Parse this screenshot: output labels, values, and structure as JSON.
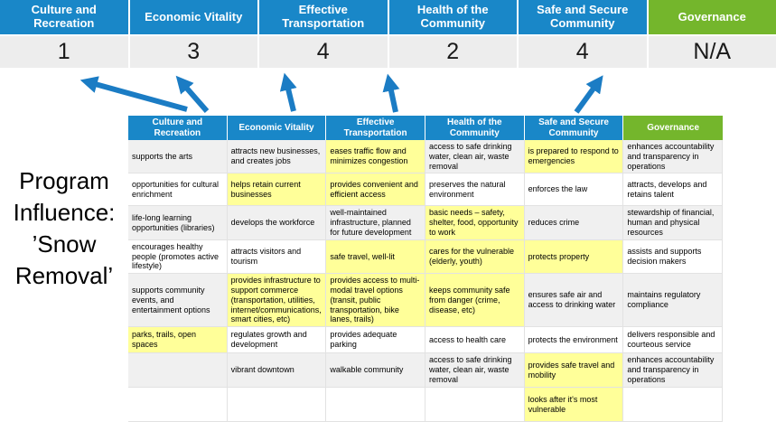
{
  "colors": {
    "header_blue": "#1987C8",
    "governance_green": "#74B62C",
    "highlight_yellow": "#FFFF99",
    "score_row_bg": "#EDEDED",
    "banded_row_gray": "#F0F0F0",
    "arrow_blue": "#1B7CC4"
  },
  "side_label": {
    "text": "Program Influence: ’Snow Removal’"
  },
  "top_band": {
    "categories": [
      {
        "label": "Culture and Recreation",
        "score": "1",
        "color": "#1987C8"
      },
      {
        "label": "Economic Vitality",
        "score": "3",
        "color": "#1987C8"
      },
      {
        "label": "Effective Transportation",
        "score": "4",
        "color": "#1987C8"
      },
      {
        "label": "Health of the Community",
        "score": "2",
        "color": "#1987C8"
      },
      {
        "label": "Safe and Secure Community",
        "score": "4",
        "color": "#1987C8"
      },
      {
        "label": "Governance",
        "score": "N/A",
        "color": "#74B62C"
      }
    ]
  },
  "matrix": {
    "columns": [
      {
        "label": "Culture and Recreation",
        "color": "#1987C8"
      },
      {
        "label": "Economic Vitality",
        "color": "#1987C8"
      },
      {
        "label": "Effective Transportation",
        "color": "#1987C8"
      },
      {
        "label": "Health of the Community",
        "color": "#1987C8"
      },
      {
        "label": "Safe and Secure Community",
        "color": "#1987C8"
      },
      {
        "label": "Governance",
        "color": "#74B62C"
      }
    ],
    "rows": [
      [
        {
          "text": "supports the arts",
          "highlight": false
        },
        {
          "text": "attracts new businesses, and creates jobs",
          "highlight": false
        },
        {
          "text": "eases traffic flow and minimizes congestion",
          "highlight": true
        },
        {
          "text": "access to safe drinking water, clean air, waste removal",
          "highlight": false
        },
        {
          "text": "is prepared to respond to emergencies",
          "highlight": true
        },
        {
          "text": "enhances accountability and transparency in operations",
          "highlight": false
        }
      ],
      [
        {
          "text": "opportunities for cultural enrichment",
          "highlight": false
        },
        {
          "text": "helps retain current businesses",
          "highlight": true
        },
        {
          "text": "provides convenient and efficient access",
          "highlight": true
        },
        {
          "text": "preserves the natural environment",
          "highlight": false
        },
        {
          "text": "enforces the law",
          "highlight": false
        },
        {
          "text": "attracts, develops and retains talent",
          "highlight": false
        }
      ],
      [
        {
          "text": "life-long learning opportunities (libraries)",
          "highlight": false
        },
        {
          "text": "develops the workforce",
          "highlight": false
        },
        {
          "text": "well-maintained infrastructure, planned for future development",
          "highlight": false
        },
        {
          "text": "basic needs – safety, shelter, food, opportunity to work",
          "highlight": true
        },
        {
          "text": "reduces crime",
          "highlight": false
        },
        {
          "text": "stewardship of financial, human and physical resources",
          "highlight": false
        }
      ],
      [
        {
          "text": "encourages healthy people (promotes active lifestyle)",
          "highlight": false
        },
        {
          "text": "attracts visitors and tourism",
          "highlight": false
        },
        {
          "text": "safe travel, well-lit",
          "highlight": true
        },
        {
          "text": "cares for the vulnerable (elderly, youth)",
          "highlight": true
        },
        {
          "text": "protects property",
          "highlight": true
        },
        {
          "text": "assists and supports decision makers",
          "highlight": false
        }
      ],
      [
        {
          "text": "supports community events, and entertainment options",
          "highlight": false
        },
        {
          "text": "provides infrastructure to support commerce (transportation, utilities, internet/communications, smart cities, etc)",
          "highlight": true
        },
        {
          "text": "provides access to multi-modal travel options (transit, public transportation, bike lanes, trails)",
          "highlight": true
        },
        {
          "text": "keeps community safe from danger (crime, disease, etc)",
          "highlight": true
        },
        {
          "text": "ensures safe air and access to drinking water",
          "highlight": false
        },
        {
          "text": "maintains regulatory compliance",
          "highlight": false
        }
      ],
      [
        {
          "text": "parks, trails, open spaces",
          "highlight": true
        },
        {
          "text": "regulates growth and development",
          "highlight": false
        },
        {
          "text": "provides adequate parking",
          "highlight": false
        },
        {
          "text": "access to health care",
          "highlight": false
        },
        {
          "text": "protects the environment",
          "highlight": false
        },
        {
          "text": "delivers responsible and courteous service",
          "highlight": false
        }
      ],
      [
        {
          "text": "",
          "highlight": false
        },
        {
          "text": "vibrant downtown",
          "highlight": false
        },
        {
          "text": "walkable community",
          "highlight": false
        },
        {
          "text": "access to safe drinking water, clean air, waste removal",
          "highlight": false
        },
        {
          "text": "provides safe travel and mobility",
          "highlight": true
        },
        {
          "text": "enhances accountability and transparency in operations",
          "highlight": false
        }
      ],
      [
        {
          "text": "",
          "highlight": false
        },
        {
          "text": "",
          "highlight": false
        },
        {
          "text": "",
          "highlight": false
        },
        {
          "text": "",
          "highlight": false
        },
        {
          "text": "looks after it's most vulnerable",
          "highlight": true
        },
        {
          "text": "",
          "highlight": false
        }
      ]
    ]
  }
}
